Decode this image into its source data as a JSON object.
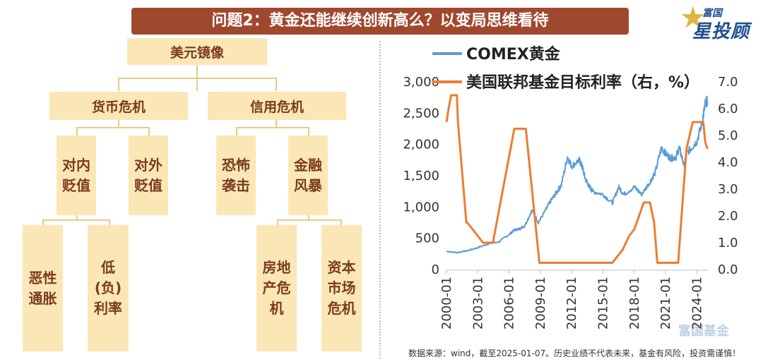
{
  "title": "问题2：黄金还能继续创新高么？以变局思维看待",
  "logo": {
    "small": "富国",
    "big": "星投顾"
  },
  "tree": {
    "root": "美元镜像",
    "level1": [
      "货币危机",
      "信用危机"
    ],
    "level2": [
      "对内贬值",
      "对外贬值",
      "恐怖袭击",
      "金融风暴"
    ],
    "level3": [
      "恶性通胀",
      "低(负)利率",
      "房地产危机",
      "资本市场危机"
    ]
  },
  "footer": "数据来源：wind，截至2025-01-07。历史业绩不代表未来，基金有风险，投资需谨慎！",
  "watermark": "富国基金",
  "colors": {
    "gold_series": "#5b9bd5",
    "rate_series": "#ed7d31",
    "title_bg": "#a0482e",
    "box_bg": "#fbe7b6"
  },
  "chart_data": {
    "type": "line",
    "title": "",
    "xlabel": "",
    "ylabel": "",
    "y2label": "",
    "ylim": [
      0,
      3000
    ],
    "y2lim": [
      0,
      7
    ],
    "yticks": [
      "0",
      "500",
      "1,000",
      "1,500",
      "2,000",
      "2,500",
      "3,000"
    ],
    "y2ticks": [
      "0.0",
      "1.0",
      "2.0",
      "3.0",
      "4.0",
      "5.0",
      "6.0",
      "7.0"
    ],
    "xticks": [
      "2000-01",
      "2003-01",
      "2006-01",
      "2009-01",
      "2012-01",
      "2015-01",
      "2018-01",
      "2021-01",
      "2024-01"
    ],
    "xlim": [
      2000.0,
      2025.05
    ],
    "legend_position": "top",
    "grid": false,
    "series": [
      {
        "name": "COMEX黄金",
        "axis": "left",
        "x": [
          2000.0,
          2001.0,
          2002.0,
          2003.0,
          2004.0,
          2005.0,
          2006.0,
          2006.5,
          2007.0,
          2007.5,
          2008.2,
          2008.8,
          2009.5,
          2010.0,
          2010.5,
          2011.0,
          2011.6,
          2012.0,
          2012.7,
          2013.0,
          2013.3,
          2013.7,
          2014.0,
          2015.0,
          2015.9,
          2016.5,
          2017.0,
          2018.0,
          2018.7,
          2019.5,
          2020.0,
          2020.6,
          2021.0,
          2021.5,
          2022.0,
          2022.3,
          2022.8,
          2023.0,
          2023.5,
          2024.0,
          2024.5,
          2024.8,
          2025.0
        ],
        "values": [
          290,
          270,
          300,
          350,
          410,
          440,
          560,
          630,
          650,
          700,
          950,
          750,
          950,
          1100,
          1220,
          1350,
          1800,
          1650,
          1750,
          1650,
          1450,
          1320,
          1250,
          1200,
          1060,
          1320,
          1200,
          1320,
          1200,
          1400,
          1550,
          1950,
          1850,
          1780,
          1800,
          1950,
          1650,
          1850,
          1950,
          2050,
          2350,
          2650,
          2700
        ]
      },
      {
        "name": "美国联邦基金目标利率（右，%）",
        "axis": "right",
        "x": [
          2000.0,
          2000.2,
          2000.45,
          2001.0,
          2001.1,
          2001.9,
          2002.0,
          2003.5,
          2004.45,
          2006.5,
          2007.6,
          2008.9,
          2009.0,
          2015.9,
          2016.9,
          2017.5,
          2018.0,
          2018.9,
          2019.5,
          2019.9,
          2020.2,
          2022.2,
          2023.0,
          2023.6,
          2024.6,
          2024.8,
          2025.0
        ],
        "values": [
          5.5,
          6.0,
          6.5,
          6.5,
          5.5,
          1.75,
          1.75,
          1.0,
          1.0,
          5.25,
          5.25,
          0.25,
          0.25,
          0.25,
          0.75,
          1.25,
          1.5,
          2.5,
          2.5,
          1.75,
          0.25,
          0.25,
          4.5,
          5.5,
          5.5,
          4.75,
          4.5
        ]
      }
    ]
  }
}
